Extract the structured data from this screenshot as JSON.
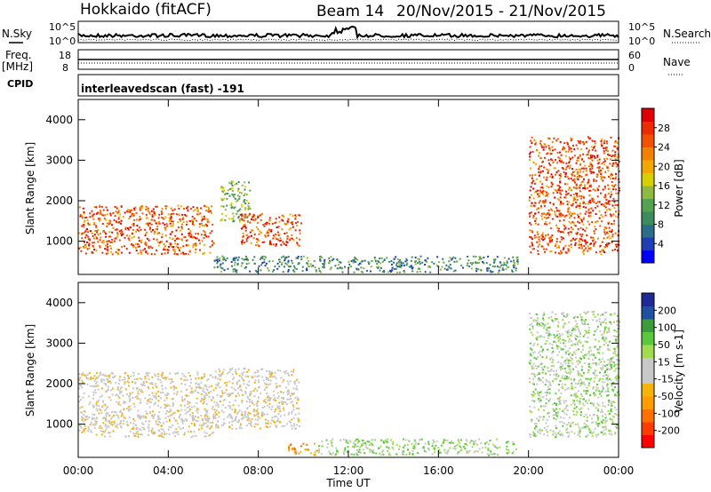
{
  "header": {
    "station": "Hokkaido (fitACF)",
    "beam": "Beam 14",
    "date_range": "20/Nov/2015 - 21/Nov/2015"
  },
  "summary_panels": {
    "nsky_label": "N.Sky",
    "nsearch_label": "N.Search",
    "nsky_ticks": [
      "10^5",
      "10^0"
    ],
    "nsearch_ticks": [
      "10^5",
      "10^0"
    ],
    "freq_label": "Freq.",
    "freq_unit": "[MHz]",
    "freq_ticks": [
      "18",
      "8"
    ],
    "nave_label": "Nave",
    "nave_ticks": [
      "60",
      "0"
    ],
    "cpid_label": "CPID",
    "cpid_text": "interleavedscan (fast) -191"
  },
  "chart_data": [
    {
      "type": "heatmap",
      "name": "power",
      "ylabel": "Slant Range [km]",
      "xlabel": "",
      "xlim": [
        0,
        24
      ],
      "ylim": [
        180,
        4500
      ],
      "yticks": [
        1000,
        2000,
        3000,
        4000
      ],
      "colorbar": {
        "label": "Power [dB]",
        "ticks": [
          "28",
          "24",
          "20",
          "16",
          "12",
          "8",
          "4"
        ],
        "colors": [
          "#0000ff",
          "#1e3fb4",
          "#2c6e8a",
          "#3e8c5c",
          "#53a24f",
          "#8fba3f",
          "#d6d000",
          "#f0a800",
          "#f38000",
          "#f25200",
          "#ee2a00",
          "#e00000"
        ]
      },
      "regions": [
        {
          "t0": 0.0,
          "t1": 6.0,
          "r0": 700,
          "r1": 1900,
          "level": "high"
        },
        {
          "t0": 6.3,
          "t1": 7.6,
          "r0": 1500,
          "r1": 2500,
          "level": "mid"
        },
        {
          "t0": 7.2,
          "t1": 9.9,
          "r0": 900,
          "r1": 1700,
          "level": "high"
        },
        {
          "t0": 6.0,
          "t1": 19.5,
          "r0": 250,
          "r1": 650,
          "level": "low"
        },
        {
          "t0": 20.0,
          "t1": 24.0,
          "r0": 700,
          "r1": 3600,
          "level": "high"
        }
      ]
    },
    {
      "type": "heatmap",
      "name": "velocity",
      "ylabel": "Slant Range [km]",
      "xlabel": "Time UT",
      "xlim": [
        0,
        24
      ],
      "ylim": [
        180,
        4500
      ],
      "yticks": [
        1000,
        2000,
        3000,
        4000
      ],
      "colorbar": {
        "label": "Velocity [m s-1]",
        "ticks": [
          "200",
          "100",
          "50",
          "15",
          "-15",
          "-50",
          "-100",
          "-200"
        ],
        "colors": [
          "#ff0000",
          "#ff3c00",
          "#ff7000",
          "#ff9c00",
          "#f5b40a",
          "#c8c8c8",
          "#c8c8c8",
          "#a0dc50",
          "#5ac83c",
          "#3c9c3c",
          "#2050a0",
          "#1e2896"
        ]
      },
      "regions": [
        {
          "t0": 0.0,
          "t1": 6.0,
          "r0": 700,
          "r1": 2300,
          "level": "gray"
        },
        {
          "t0": 6.0,
          "t1": 9.8,
          "r0": 900,
          "r1": 2400,
          "level": "gray"
        },
        {
          "t0": 9.3,
          "t1": 10.6,
          "r0": 250,
          "r1": 550,
          "level": "orange"
        },
        {
          "t0": 10.6,
          "t1": 19.5,
          "r0": 250,
          "r1": 650,
          "level": "green"
        },
        {
          "t0": 20.0,
          "t1": 24.0,
          "r0": 700,
          "r1": 3800,
          "level": "mixed"
        }
      ]
    }
  ],
  "time_axis": {
    "ticks": [
      "00:00",
      "04:00",
      "08:00",
      "12:00",
      "16:00",
      "20:00",
      "00:00"
    ],
    "label": "Time UT"
  }
}
